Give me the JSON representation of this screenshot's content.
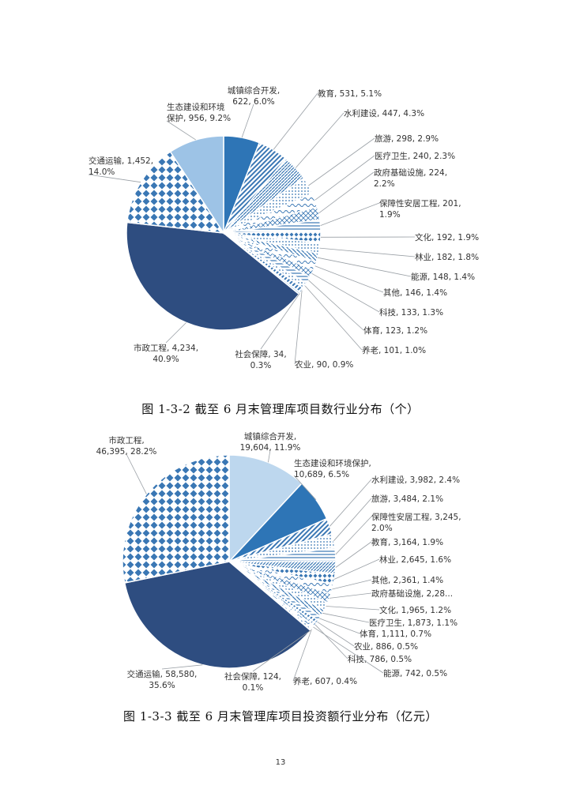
{
  "colors": {
    "dark_navy": "#2e4d80",
    "blue": "#2e75b6",
    "light_blue": "#9dc3e6",
    "pale_blue": "#bdd7ee",
    "pattern_blue": "#3a77b4",
    "leader": "#9aa0a6"
  },
  "chart_data": [
    {
      "type": "pie",
      "title": "",
      "slices": [
        {
          "label": "城镇综合开发",
          "value": 622,
          "percent": "6.0%",
          "text": [
            "城镇综合开发,",
            "622, 6.0%"
          ],
          "pattern": "solid_blue"
        },
        {
          "label": "教育",
          "value": 531,
          "percent": "5.1%",
          "text": [
            "教育, 531, 5.1%"
          ],
          "pattern": "diag_blue"
        },
        {
          "label": "水利建设",
          "value": 447,
          "percent": "4.3%",
          "text": [
            "水利建设, 447, 4.3%"
          ],
          "pattern": "diag_dense"
        },
        {
          "label": "旅游",
          "value": 298,
          "percent": "2.9%",
          "text": [
            "旅游, 298, 2.9%"
          ],
          "pattern": "dots"
        },
        {
          "label": "医疗卫生",
          "value": 240,
          "percent": "2.3%",
          "text": [
            "医疗卫生, 240, 2.3%"
          ],
          "pattern": "wave"
        },
        {
          "label": "政府基础设施",
          "value": 224,
          "percent": "2.2%",
          "text": [
            "政府基础设施, 224,",
            "2.2%"
          ],
          "pattern": "cross"
        },
        {
          "label": "保障性安居工程",
          "value": 201,
          "percent": "1.9%",
          "text": [
            "保障性安居工程, 201,",
            "1.9%"
          ],
          "pattern": "hlines"
        },
        {
          "label": "文化",
          "value": 192,
          "percent": "1.9%",
          "text": [
            "文化, 192, 1.9%"
          ],
          "pattern": "checker_small"
        },
        {
          "label": "林业",
          "value": 182,
          "percent": "1.8%",
          "text": [
            "林业, 182, 1.8%"
          ],
          "pattern": "dots"
        },
        {
          "label": "能源",
          "value": 148,
          "percent": "1.4%",
          "text": [
            "能源, 148, 1.4%"
          ],
          "pattern": "diag_rev"
        },
        {
          "label": "其他",
          "value": 146,
          "percent": "1.4%",
          "text": [
            "其他, 146, 1.4%"
          ],
          "pattern": "wave"
        },
        {
          "label": "科技",
          "value": 133,
          "percent": "1.3%",
          "text": [
            "科技, 133, 1.3%"
          ],
          "pattern": "cross"
        },
        {
          "label": "体育",
          "value": 123,
          "percent": "1.2%",
          "text": [
            "体育, 123, 1.2%"
          ],
          "pattern": "hlines"
        },
        {
          "label": "养老",
          "value": 101,
          "percent": "1.0%",
          "text": [
            "养老, 101, 1.0%"
          ],
          "pattern": "dots"
        },
        {
          "label": "农业",
          "value": 90,
          "percent": "0.9%",
          "text": [
            "农业, 90, 0.9%"
          ],
          "pattern": "diag_blue"
        },
        {
          "label": "社会保障",
          "value": 34,
          "percent": "0.3%",
          "text": [
            "社会保障, 34,",
            "0.3%"
          ],
          "pattern": "solid_pale"
        },
        {
          "label": "市政工程",
          "value": 4234,
          "percent": "40.9%",
          "text": [
            "市政工程, 4,234,",
            "40.9%"
          ],
          "pattern": "solid_navy"
        },
        {
          "label": "交通运输",
          "value": 1452,
          "percent": "14.0%",
          "text": [
            "交通运输, 1,452,",
            "14.0%"
          ],
          "pattern": "checker"
        },
        {
          "label": "生态建设和环境保护",
          "value": 956,
          "percent": "9.2%",
          "text": [
            "生态建设和环境",
            "保护, 956, 9.2%"
          ],
          "pattern": "solid_light"
        }
      ]
    },
    {
      "type": "pie",
      "title": "",
      "slices": [
        {
          "label": "城镇综合开发",
          "value": 19604,
          "percent": "11.9%",
          "text": [
            "城镇综合开发,",
            "19,604, 11.9%"
          ],
          "pattern": "solid_pale"
        },
        {
          "label": "生态建设和环境保护",
          "value": 10689,
          "percent": "6.5%",
          "text": [
            "生态建设和环境保护,",
            "10,689, 6.5%"
          ],
          "pattern": "solid_blue"
        },
        {
          "label": "水利建设",
          "value": 3982,
          "percent": "2.4%",
          "text": [
            "水利建设, 3,982, 2.4%"
          ],
          "pattern": "diag_blue"
        },
        {
          "label": "旅游",
          "value": 3484,
          "percent": "2.1%",
          "text": [
            "旅游, 3,484, 2.1%"
          ],
          "pattern": "dots"
        },
        {
          "label": "保障性安居工程",
          "value": 3245,
          "percent": "2.0%",
          "text": [
            "保障性安居工程, 3,245,",
            "2.0%"
          ],
          "pattern": "hlines"
        },
        {
          "label": "教育",
          "value": 3164,
          "percent": "1.9%",
          "text": [
            "教育, 3,164, 1.9%"
          ],
          "pattern": "diag_dense"
        },
        {
          "label": "林业",
          "value": 2645,
          "percent": "1.6%",
          "text": [
            "林业, 2,645, 1.6%"
          ],
          "pattern": "checker_small"
        },
        {
          "label": "其他",
          "value": 2361,
          "percent": "1.4%",
          "text": [
            "其他, 2,361, 1.4%"
          ],
          "pattern": "wave"
        },
        {
          "label": "政府基础设施",
          "value": 2280,
          "percent": "",
          "text": [
            "政府基础设施, 2,28..."
          ],
          "pattern": "cross"
        },
        {
          "label": "文化",
          "value": 1965,
          "percent": "1.2%",
          "text": [
            "文化, 1,965, 1.2%"
          ],
          "pattern": "dots"
        },
        {
          "label": "医疗卫生",
          "value": 1873,
          "percent": "1.1%",
          "text": [
            "医疗卫生, 1,873, 1.1%"
          ],
          "pattern": "diag_rev"
        },
        {
          "label": "体育",
          "value": 1111,
          "percent": "0.7%",
          "text": [
            "体育, 1,111, 0.7%"
          ],
          "pattern": "hlines"
        },
        {
          "label": "农业",
          "value": 886,
          "percent": "0.5%",
          "text": [
            "农业, 886, 0.5%"
          ],
          "pattern": "diag_blue"
        },
        {
          "label": "科技",
          "value": 786,
          "percent": "0.5%",
          "text": [
            "科技, 786, 0.5%"
          ],
          "pattern": "cross"
        },
        {
          "label": "能源",
          "value": 742,
          "percent": "0.5%",
          "text": [
            "能源, 742, 0.5%"
          ],
          "pattern": "wave"
        },
        {
          "label": "养老",
          "value": 607,
          "percent": "0.4%",
          "text": [
            "养老, 607, 0.4%"
          ],
          "pattern": "dots"
        },
        {
          "label": "社会保障",
          "value": 124,
          "percent": "0.1%",
          "text": [
            "社会保障, 124,",
            "0.1%"
          ],
          "pattern": "solid_light"
        },
        {
          "label": "交通运输",
          "value": 58580,
          "percent": "35.6%",
          "text": [
            "交通运输, 58,580,",
            "35.6%"
          ],
          "pattern": "solid_navy"
        },
        {
          "label": "市政工程",
          "value": 46395,
          "percent": "28.2%",
          "text": [
            "市政工程,",
            "46,395, 28.2%"
          ],
          "pattern": "checker"
        }
      ]
    }
  ],
  "captions": {
    "fig1": "图 1-3-2   截至 6 月末管理库项目数行业分布（个）",
    "fig2": "图 1-3-3   截至 6 月末管理库项目投资额行业分布（亿元）"
  },
  "page_number": "13"
}
